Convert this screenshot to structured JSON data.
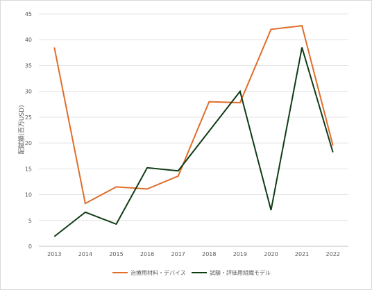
{
  "chart_data": {
    "type": "line",
    "title": "",
    "xlabel": "",
    "ylabel": "配賦額(百万USD)",
    "x": [
      "2013",
      "2014",
      "2015",
      "2016",
      "2017",
      "2018",
      "2019",
      "2020",
      "2021",
      "2022"
    ],
    "ylim": [
      0,
      45
    ],
    "yticks": [
      0,
      5,
      10,
      15,
      20,
      25,
      30,
      35,
      40,
      45
    ],
    "grid": true,
    "legend_position": "bottom",
    "series": [
      {
        "name": "治療用材料・デバイス",
        "color": "#E06C2B",
        "values": [
          38.5,
          8.3,
          11.5,
          11.1,
          13.6,
          28.0,
          27.8,
          42.0,
          42.7,
          19.5
        ]
      },
      {
        "name": "試験・評価用組織モデル",
        "color": "#0F3B14",
        "values": [
          1.9,
          6.6,
          4.3,
          15.2,
          14.6,
          22.3,
          30.0,
          7.0,
          38.5,
          18.2
        ]
      }
    ]
  }
}
